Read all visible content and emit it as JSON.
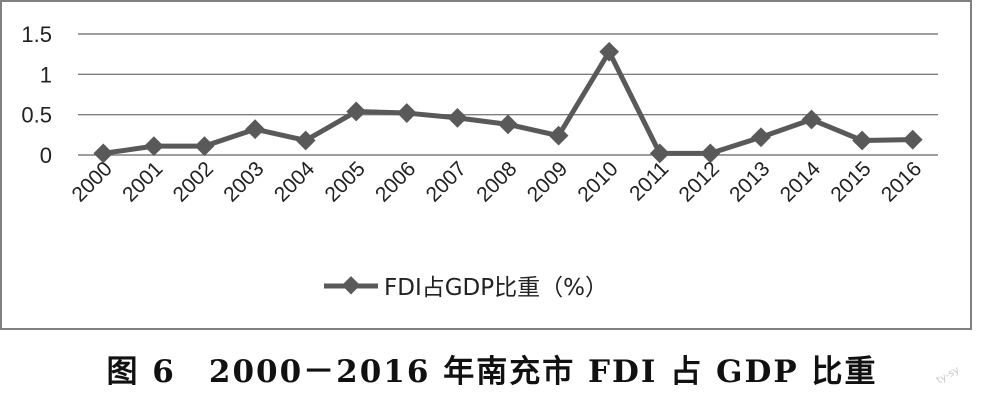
{
  "chart_data": {
    "type": "line",
    "categories": [
      "2000",
      "2001",
      "2002",
      "2003",
      "2004",
      "2005",
      "2006",
      "2007",
      "2008",
      "2009",
      "2010",
      "2011",
      "2012",
      "2013",
      "2014",
      "2015",
      "2016"
    ],
    "series": [
      {
        "name": "FDI占GDP比重（%）",
        "values": [
          0.02,
          0.11,
          0.11,
          0.32,
          0.18,
          0.54,
          0.52,
          0.46,
          0.38,
          0.24,
          1.28,
          0.02,
          0.02,
          0.22,
          0.44,
          0.18,
          0.19
        ],
        "color": "#595959"
      }
    ],
    "yticks": [
      "0",
      "0.5",
      "1",
      "1.5"
    ],
    "ylim": [
      0,
      1.5
    ],
    "grid": true,
    "legend_position": "bottom",
    "marker": "diamond"
  },
  "caption": "图 6　2000－2016 年南充市 FDI 占 GDP 比重",
  "watermark": "ty-sy"
}
